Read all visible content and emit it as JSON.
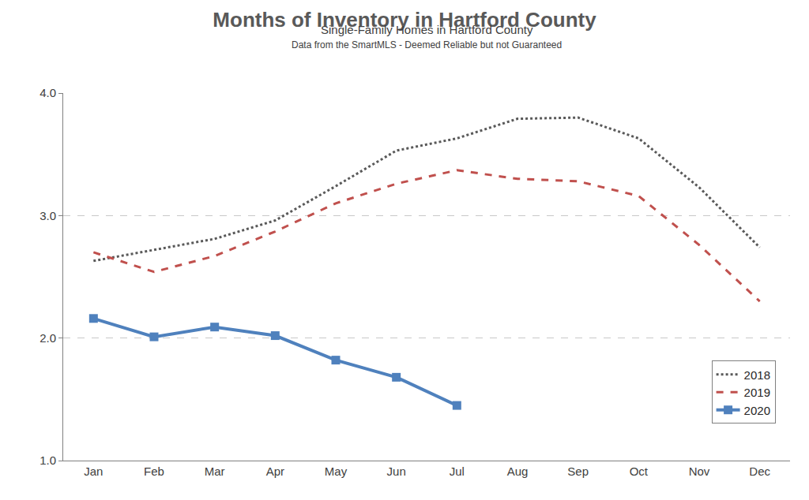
{
  "chart_data": {
    "type": "line",
    "title": "Months of Inventory in Hartford County",
    "subtitle": "Single-Family Homes in Hartford County",
    "annotations": [
      "Data from the SmartMLS - Deemed Reliable but not Guaranteed"
    ],
    "categories": [
      "Jan",
      "Feb",
      "Mar",
      "Apr",
      "May",
      "Jun",
      "Jul",
      "Aug",
      "Sep",
      "Oct",
      "Nov",
      "Dec"
    ],
    "series": [
      {
        "name": "2018",
        "color": "#595959",
        "line_style": "dot",
        "marker": "none",
        "values": [
          2.63,
          2.72,
          2.81,
          2.96,
          3.24,
          3.53,
          3.63,
          3.79,
          3.8,
          3.63,
          3.23,
          2.74
        ]
      },
      {
        "name": "2019",
        "color": "#c0504d",
        "line_style": "dash",
        "marker": "none",
        "values": [
          2.7,
          2.54,
          2.67,
          2.87,
          3.1,
          3.26,
          3.37,
          3.3,
          3.28,
          3.16,
          2.76,
          2.3
        ]
      },
      {
        "name": "2020",
        "color": "#4f81bd",
        "line_style": "solid",
        "marker": "square",
        "values": [
          2.16,
          2.01,
          2.09,
          2.02,
          1.82,
          1.68,
          1.45,
          null,
          null,
          null,
          null,
          null
        ]
      }
    ],
    "ylim": [
      1,
      4
    ],
    "yticks": [
      {
        "value": 1,
        "label": "1.0"
      },
      {
        "value": 2,
        "label": "2.0"
      },
      {
        "value": 3,
        "label": "3.0"
      },
      {
        "value": 4,
        "label": "4.0"
      }
    ],
    "grid": true,
    "legend": "bottom right"
  }
}
